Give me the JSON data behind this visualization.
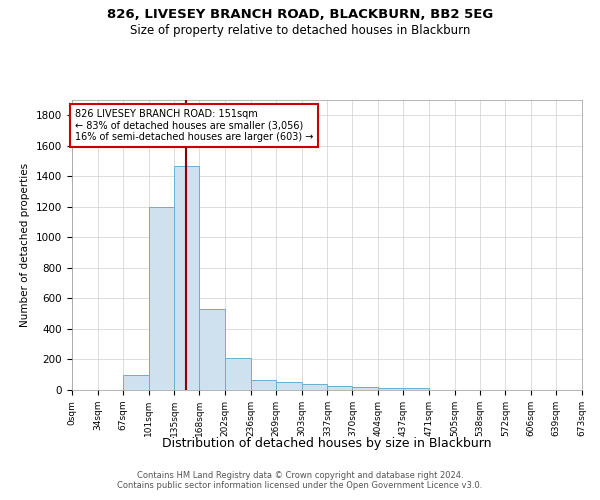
{
  "title1": "826, LIVESEY BRANCH ROAD, BLACKBURN, BB2 5EG",
  "title2": "Size of property relative to detached houses in Blackburn",
  "xlabel": "Distribution of detached houses by size in Blackburn",
  "ylabel": "Number of detached properties",
  "bar_edges": [
    0,
    34,
    67,
    101,
    135,
    168,
    202,
    236,
    269,
    303,
    337,
    370,
    404,
    437,
    471,
    505,
    538,
    572,
    606,
    639,
    673
  ],
  "bar_heights": [
    0,
    0,
    100,
    1200,
    1470,
    530,
    210,
    65,
    50,
    40,
    25,
    20,
    10,
    10,
    0,
    0,
    0,
    0,
    0,
    0
  ],
  "bar_color": "#cfe0ef",
  "bar_edgecolor": "#6aaed6",
  "vline_x": 151,
  "vline_color": "#8b0000",
  "annotation_lines": [
    "826 LIVESEY BRANCH ROAD: 151sqm",
    "← 83% of detached houses are smaller (3,056)",
    "16% of semi-detached houses are larger (603) →"
  ],
  "annotation_box_color": "#ffffff",
  "annotation_box_edgecolor": "#cc0000",
  "footer1": "Contains HM Land Registry data © Crown copyright and database right 2024.",
  "footer2": "Contains public sector information licensed under the Open Government Licence v3.0.",
  "ylim": [
    0,
    1900
  ],
  "xlim": [
    0,
    673
  ],
  "background_color": "#ffffff",
  "grid_color": "#d0d0d0"
}
